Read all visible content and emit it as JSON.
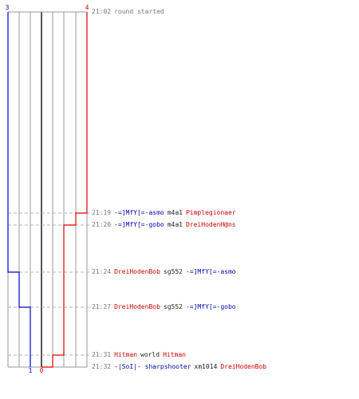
{
  "colors": {
    "red": "#e00000",
    "blue": "#0000cc",
    "grid": "#999999",
    "axis": "#555555",
    "guide": "#b0b0b0"
  },
  "chart_data": {
    "type": "line",
    "title": "",
    "series": [
      {
        "team": "blue",
        "start": 3,
        "end": 1,
        "changes": [
          {
            "time": "21:24",
            "value": 2
          },
          {
            "time": "21:27",
            "value": 1
          }
        ]
      },
      {
        "team": "red",
        "start": 4,
        "end": 0,
        "changes": [
          {
            "time": "21:19",
            "value": 3
          },
          {
            "time": "21:20",
            "value": 2
          },
          {
            "time": "21:31",
            "value": 1
          },
          {
            "time": "21:32",
            "value": 0
          }
        ]
      }
    ],
    "labels": {
      "blue_start": "3",
      "red_start": "4",
      "blue_end": "1",
      "red_end": "0"
    },
    "grid": true
  },
  "events": [
    {
      "time": "21:02",
      "parts": [
        {
          "text": "round started",
          "color": "gray"
        }
      ]
    },
    {
      "time": "21:19",
      "parts": [
        {
          "text": "-=]MfY[=-asmo",
          "color": "blue"
        },
        {
          "text": "m4a1",
          "color": "black"
        },
        {
          "text": "Pimplegionaer",
          "color": "red"
        }
      ]
    },
    {
      "time": "21:20",
      "parts": [
        {
          "text": "-=]MfY[=-gobo",
          "color": "blue"
        },
        {
          "text": "m4a1",
          "color": "black"
        },
        {
          "text": "DreiHodenH@ns",
          "color": "red"
        }
      ]
    },
    {
      "time": "21:24",
      "parts": [
        {
          "text": "DreiHodenBob",
          "color": "red"
        },
        {
          "text": "sg552",
          "color": "black"
        },
        {
          "text": "-=]MfY[=-asmo",
          "color": "blue"
        }
      ]
    },
    {
      "time": "21:27",
      "parts": [
        {
          "text": "DreiHodenBob",
          "color": "red"
        },
        {
          "text": "sg552",
          "color": "black"
        },
        {
          "text": "-=]MfY[=-gobo",
          "color": "blue"
        }
      ]
    },
    {
      "time": "21:31",
      "parts": [
        {
          "text": "Hitman",
          "color": "red"
        },
        {
          "text": "world",
          "color": "black"
        },
        {
          "text": "Hitman",
          "color": "red"
        }
      ]
    },
    {
      "time": "21:32",
      "parts": [
        {
          "text": "-|SoI|- sharpshooter",
          "color": "blue"
        },
        {
          "text": "xm1014",
          "color": "black"
        },
        {
          "text": "DreiHodenBob",
          "color": "red"
        }
      ]
    }
  ]
}
